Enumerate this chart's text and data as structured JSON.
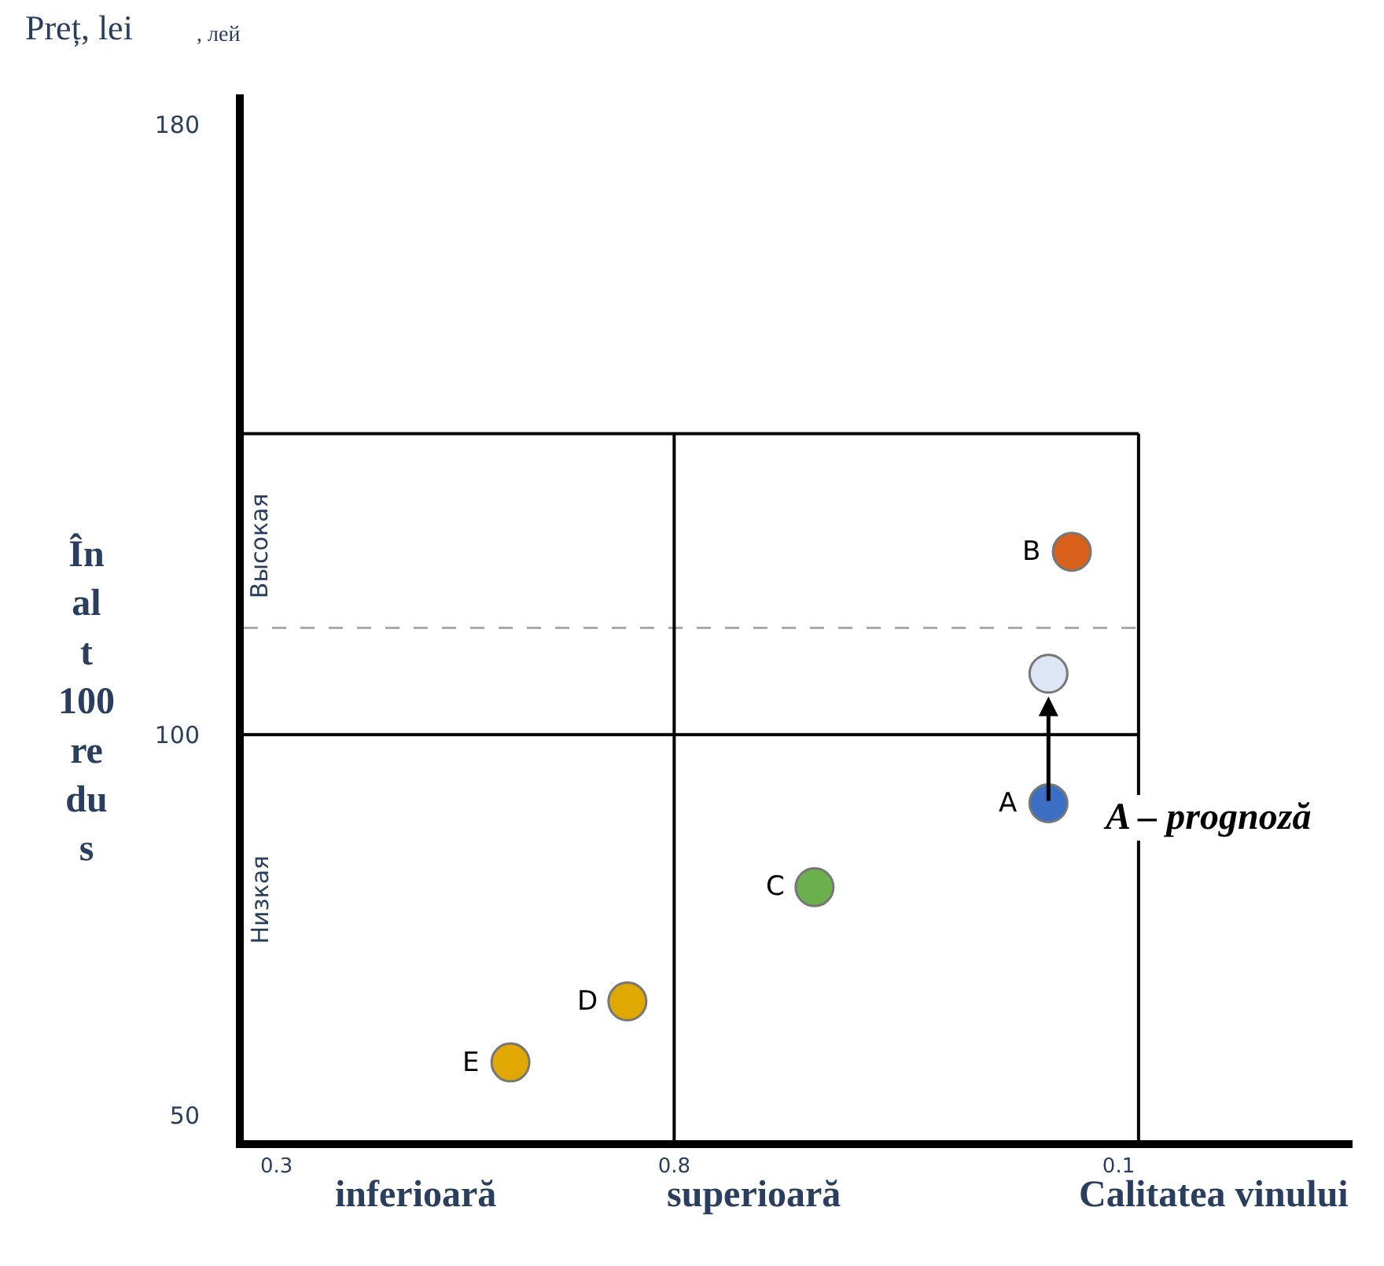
{
  "chart_data": {
    "type": "scatter",
    "title": "Preț, lei",
    "subtitle": ", лей",
    "xlabel": "Calitatea vinului",
    "ylabel": "Înalt 100 redus",
    "categories": [
      "0.3",
      null,
      null,
      null,
      null,
      null,
      null,
      null,
      null,
      null,
      null,
      null,
      null,
      null,
      null,
      null,
      null,
      "0.8",
      null,
      null,
      null,
      null,
      null,
      null,
      null,
      null,
      null,
      null,
      null,
      null,
      null,
      null,
      null,
      null,
      null,
      null,
      "0.1"
    ],
    "series": [
      {
        "name": "E",
        "color": "#e0a800",
        "values": [
          null,
          null,
          null,
          null,
          null,
          null,
          null,
          null,
          null,
          null,
          57,
          null,
          null,
          null,
          null,
          null,
          null,
          null,
          null,
          null,
          null,
          null,
          null,
          null,
          null,
          null,
          null,
          null,
          null,
          null,
          null,
          null,
          null,
          null,
          null,
          null,
          null
        ]
      },
      {
        "name": "D",
        "color": "#e0a800",
        "values": [
          null,
          null,
          null,
          null,
          null,
          null,
          null,
          null,
          null,
          null,
          null,
          null,
          null,
          null,
          null,
          65,
          null,
          null,
          null,
          null,
          null,
          null,
          null,
          null,
          null,
          null,
          null,
          null,
          null,
          null,
          null,
          null,
          null,
          null,
          null,
          null,
          null
        ]
      },
      {
        "name": "C",
        "color": "#6ab04c",
        "values": [
          null,
          null,
          null,
          null,
          null,
          null,
          null,
          null,
          null,
          null,
          null,
          null,
          null,
          null,
          null,
          null,
          null,
          null,
          null,
          null,
          null,
          null,
          null,
          80,
          null,
          null,
          null,
          null,
          null,
          null,
          null,
          null,
          null,
          null,
          null,
          null,
          null
        ]
      },
      {
        "name": "A",
        "color": "#3a6fc4",
        "values": [
          null,
          null,
          null,
          null,
          null,
          null,
          null,
          null,
          null,
          null,
          null,
          null,
          null,
          null,
          null,
          null,
          null,
          null,
          null,
          null,
          null,
          null,
          null,
          null,
          null,
          null,
          null,
          null,
          null,
          null,
          null,
          null,
          null,
          91,
          null,
          null,
          null
        ]
      },
      {
        "name": "B",
        "color": "#d9601a",
        "values": [
          null,
          null,
          null,
          null,
          null,
          null,
          null,
          null,
          null,
          null,
          null,
          null,
          null,
          null,
          null,
          null,
          null,
          null,
          null,
          null,
          null,
          null,
          null,
          null,
          null,
          null,
          null,
          null,
          null,
          null,
          null,
          null,
          null,
          null,
          124,
          null,
          null
        ]
      },
      {
        "color": "#dce6f5",
        "values": [
          null,
          null,
          null,
          null,
          null,
          null,
          null,
          null,
          null,
          null,
          null,
          null,
          null,
          null,
          null,
          null,
          null,
          null,
          null,
          null,
          null,
          null,
          null,
          null,
          null,
          null,
          null,
          null,
          null,
          null,
          null,
          null,
          null,
          108,
          null,
          null,
          null
        ]
      }
    ],
    "ylim": [
      46.8,
      184
    ],
    "yticks": [
      50,
      100,
      180
    ],
    "legend": false,
    "marker": "circle",
    "ref_lines": [
      {
        "axis": "y",
        "value": 100,
        "color": "#000000",
        "line_style": "solid"
      },
      {
        "axis": "y",
        "value": 139.5,
        "color": "#000000",
        "line_style": "solid"
      },
      {
        "axis": "y",
        "value": 114,
        "color": "#aaaaaa",
        "line_style": "dashed"
      },
      {
        "axis": "x",
        "value": "0.8",
        "color": "#000000",
        "line_style": "solid"
      }
    ],
    "annotations": [
      "A – prognoză",
      "Высокая",
      "Низкая",
      "inferioară",
      "superioară"
    ]
  }
}
